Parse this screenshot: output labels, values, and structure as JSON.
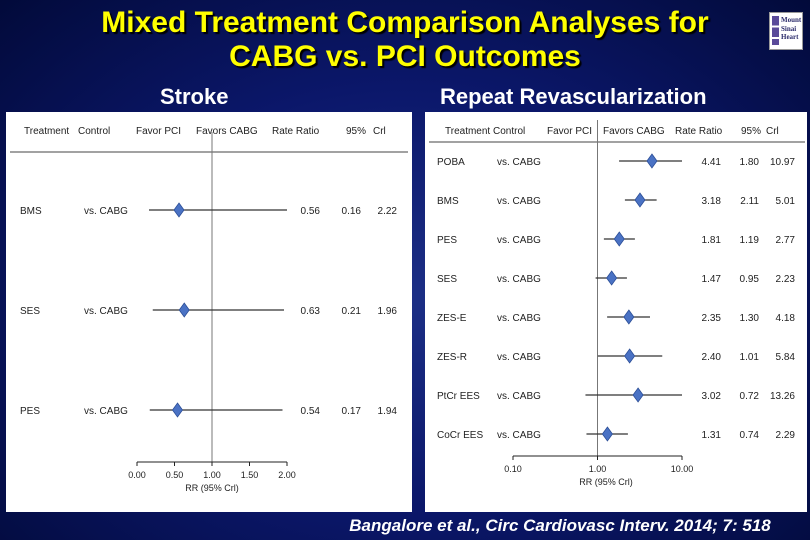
{
  "slide": {
    "title_line1": "Mixed Treatment Comparison Analyses for",
    "title_line2": "CABG vs. PCI Outcomes",
    "logo_text": [
      "Mount",
      "Sinai",
      "Heart"
    ],
    "citation": "Bangalore et al., Circ Cardiovasc Interv. 2014; 7: 518"
  },
  "colors": {
    "title": "#ffff00",
    "marker": "#4a72c4",
    "background": "#0b176a"
  },
  "chart_data": [
    {
      "type": "forest",
      "title": "Stroke",
      "headers": [
        "Treatment",
        "Control",
        "Favor PCI",
        "Favors CABG",
        "Rate Ratio",
        "95%",
        "Crl"
      ],
      "xlabel": "RR (95% Crl)",
      "scale": "linear",
      "xlim": [
        0,
        2.0
      ],
      "ticks": [
        "0.00",
        "0.50",
        "1.00",
        "1.50",
        "2.00"
      ],
      "tick_values": [
        0,
        0.5,
        1.0,
        1.5,
        2.0
      ],
      "reference": 1.0,
      "rows": [
        {
          "treatment": "BMS",
          "control": "vs. CABG",
          "rr": 0.56,
          "lo": 0.16,
          "hi": 2.22,
          "rr_text": "0.56",
          "lo_text": "0.16",
          "hi_text": "2.22"
        },
        {
          "treatment": "SES",
          "control": "vs. CABG",
          "rr": 0.63,
          "lo": 0.21,
          "hi": 1.96,
          "rr_text": "0.63",
          "lo_text": "0.21",
          "hi_text": "1.96"
        },
        {
          "treatment": "PES",
          "control": "vs. CABG",
          "rr": 0.54,
          "lo": 0.17,
          "hi": 1.94,
          "rr_text": "0.54",
          "lo_text": "0.17",
          "hi_text": "1.94"
        }
      ]
    },
    {
      "type": "forest",
      "title": "Repeat Revascularization",
      "headers": [
        "Treatment",
        "Control",
        "Favor PCI",
        "Favors CABG",
        "Rate Ratio",
        "95%",
        "Crl"
      ],
      "xlabel": "RR (95% Crl)",
      "scale": "log",
      "xlim": [
        0.1,
        10
      ],
      "ticks": [
        "0.10",
        "1.00",
        "10.00"
      ],
      "tick_values": [
        0.1,
        1.0,
        10.0
      ],
      "reference": 1.0,
      "rows": [
        {
          "treatment": "POBA",
          "control": "vs. CABG",
          "rr": 4.41,
          "lo": 1.8,
          "hi": 10.97,
          "rr_text": "4.41",
          "lo_text": "1.80",
          "hi_text": "10.97"
        },
        {
          "treatment": "BMS",
          "control": "vs. CABG",
          "rr": 3.18,
          "lo": 2.11,
          "hi": 5.01,
          "rr_text": "3.18",
          "lo_text": "2.11",
          "hi_text": "5.01"
        },
        {
          "treatment": "PES",
          "control": "vs. CABG",
          "rr": 1.81,
          "lo": 1.19,
          "hi": 2.77,
          "rr_text": "1.81",
          "lo_text": "1.19",
          "hi_text": "2.77"
        },
        {
          "treatment": "SES",
          "control": "vs. CABG",
          "rr": 1.47,
          "lo": 0.95,
          "hi": 2.23,
          "rr_text": "1.47",
          "lo_text": "0.95",
          "hi_text": "2.23"
        },
        {
          "treatment": "ZES-E",
          "control": "vs. CABG",
          "rr": 2.35,
          "lo": 1.3,
          "hi": 4.18,
          "rr_text": "2.35",
          "lo_text": "1.30",
          "hi_text": "4.18"
        },
        {
          "treatment": "ZES-R",
          "control": "vs. CABG",
          "rr": 2.4,
          "lo": 1.01,
          "hi": 5.84,
          "rr_text": "2.40",
          "lo_text": "1.01",
          "hi_text": "5.84"
        },
        {
          "treatment": "PtCr EES",
          "control": "vs. CABG",
          "rr": 3.02,
          "lo": 0.72,
          "hi": 13.26,
          "rr_text": "3.02",
          "lo_text": "0.72",
          "hi_text": "13.26"
        },
        {
          "treatment": "CoCr EES",
          "control": "vs. CABG",
          "rr": 1.31,
          "lo": 0.74,
          "hi": 2.29,
          "rr_text": "1.31",
          "lo_text": "0.74",
          "hi_text": "2.29"
        }
      ]
    }
  ]
}
